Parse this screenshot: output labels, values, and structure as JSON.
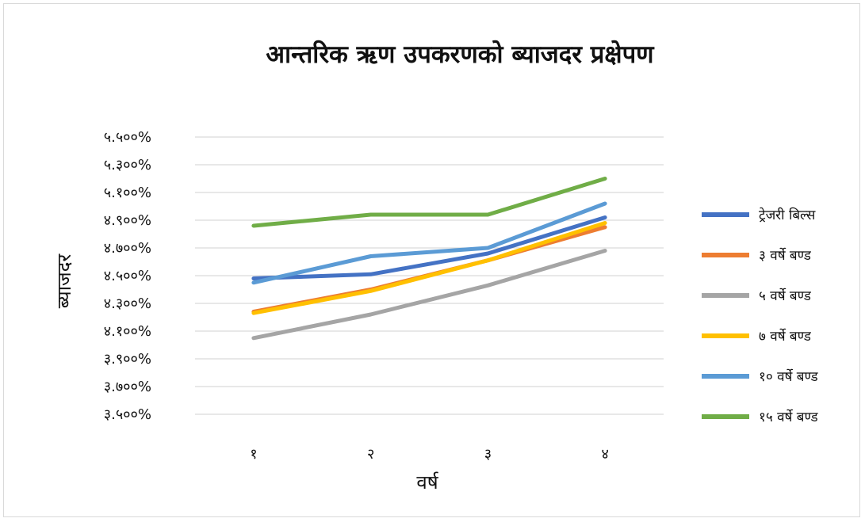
{
  "chart_data": {
    "type": "line",
    "title": "आन्तरिक ऋण उपकरणको ब्याजदर प्रक्षेपण",
    "xlabel": "वर्ष",
    "ylabel": "ब्याजदर",
    "categories": [
      "१",
      "२",
      "३",
      "४"
    ],
    "ytick_labels": [
      "५.५००%",
      "५.३००%",
      "५.१००%",
      "४.९००%",
      "४.७००%",
      "४.५००%",
      "४.३००%",
      "४.१००%",
      "३.९००%",
      "३.७००%",
      "३.५००%"
    ],
    "ylim": [
      3.5,
      5.5
    ],
    "grid": true,
    "legend_position": "right",
    "series": [
      {
        "name": "ट्रेजरी बिल्स",
        "color": "#4472C4",
        "values": [
          4.48,
          4.51,
          4.66,
          4.92
        ]
      },
      {
        "name": "३ वर्षे बण्ड",
        "color": "#ED7D31",
        "values": [
          4.24,
          4.4,
          4.61,
          4.85
        ]
      },
      {
        "name": "५ वर्षे बण्ड",
        "color": "#A5A5A5",
        "values": [
          4.05,
          4.22,
          4.43,
          4.68
        ]
      },
      {
        "name": "७ वर्षे बण्ड",
        "color": "#FFC000",
        "values": [
          4.23,
          4.39,
          4.61,
          4.88
        ]
      },
      {
        "name": "१० वर्षे बण्ड",
        "color": "#5B9BD5",
        "values": [
          4.45,
          4.64,
          4.7,
          5.02
        ]
      },
      {
        "name": "१५ वर्षे बण्ड",
        "color": "#70AD47",
        "values": [
          4.86,
          4.94,
          4.94,
          5.2
        ]
      }
    ]
  }
}
